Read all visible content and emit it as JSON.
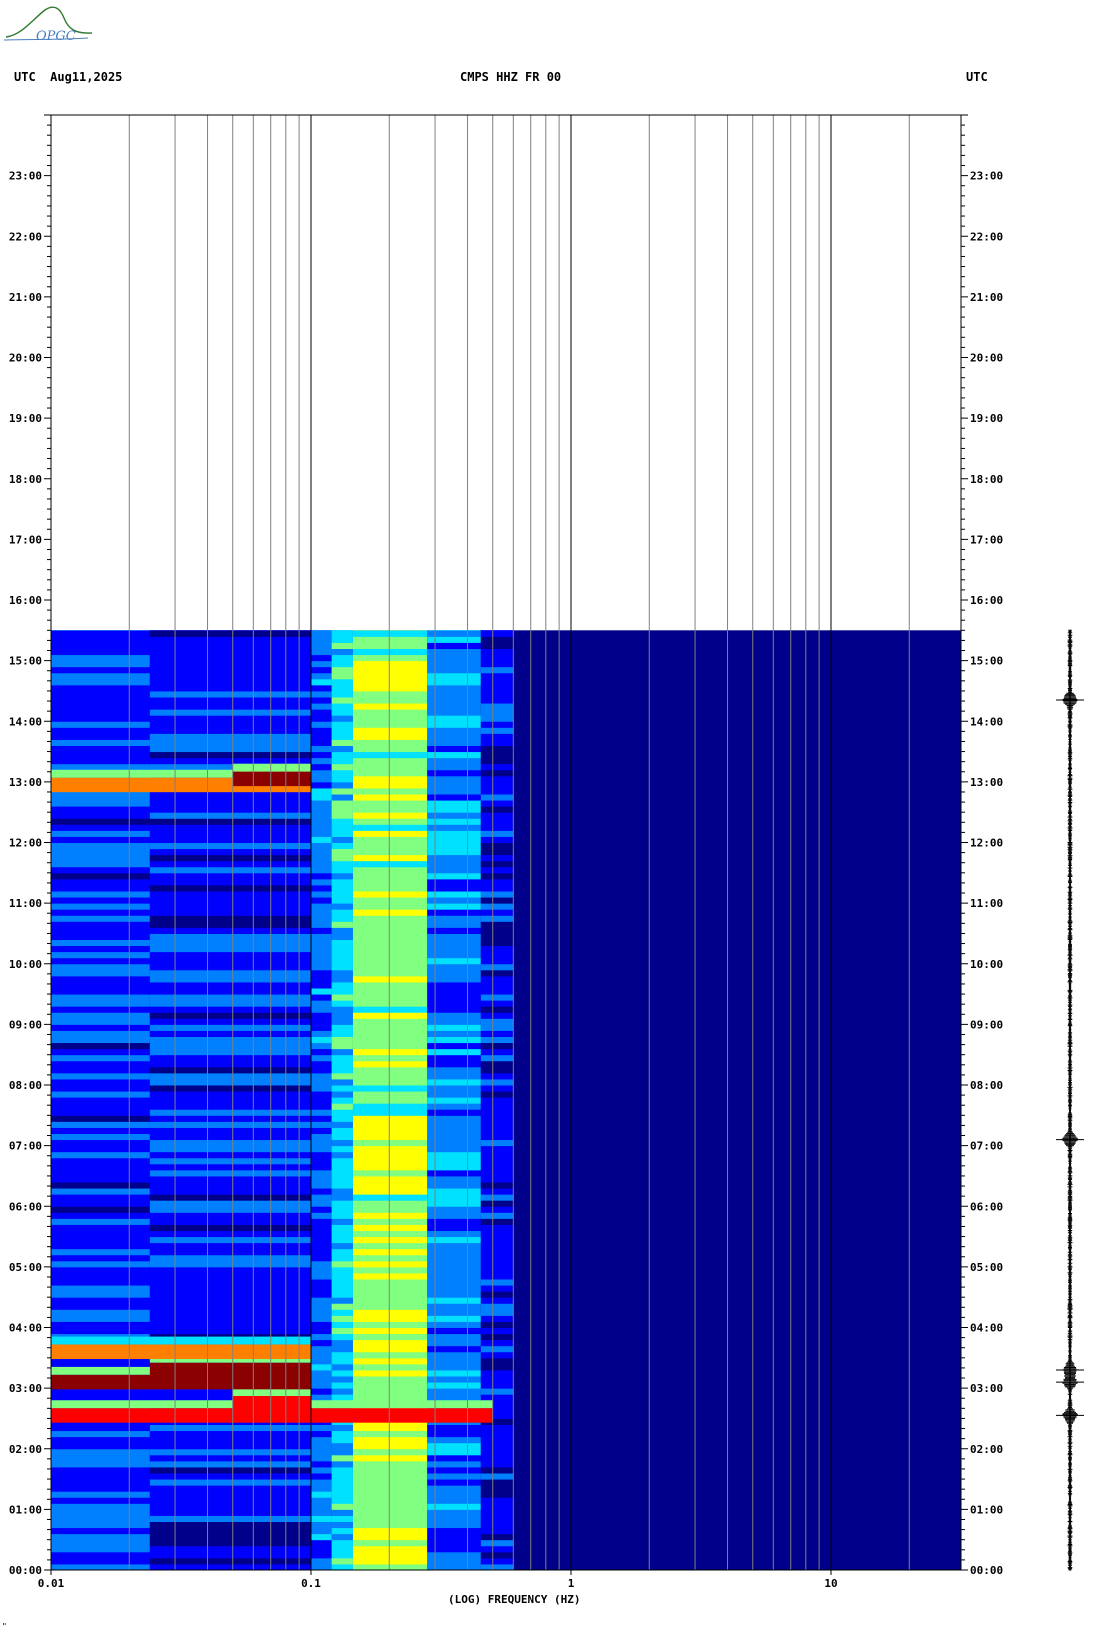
{
  "logo": {
    "text": "OPGC",
    "icon": "opgc-logo-icon",
    "color": "#2f7a2f"
  },
  "header": {
    "left_label": "UTC",
    "date": "Aug11,2025",
    "station": "CMPS HHZ FR 00",
    "right_label": "UTC"
  },
  "footer_mark": "\"",
  "chart_data": {
    "type": "heatmap",
    "title": "CMPS HHZ FR 00",
    "xlabel": "(LOG) FREQUENCY (HZ)",
    "ylabel": "",
    "x_scale": "log",
    "xlim": [
      0.01,
      30
    ],
    "x_tick_labels": [
      {
        "value": 0.01,
        "label": "0.01"
      },
      {
        "value": 0.1,
        "label": "0.1"
      },
      {
        "value": 1,
        "label": "1"
      },
      {
        "value": 10,
        "label": "10"
      }
    ],
    "x_minor_gridlines": [
      0.02,
      0.03,
      0.04,
      0.05,
      0.06,
      0.07,
      0.08,
      0.09,
      0.2,
      0.3,
      0.4,
      0.5,
      0.6,
      0.7,
      0.8,
      0.9,
      2,
      3,
      4,
      5,
      6,
      7,
      8,
      9,
      20
    ],
    "ylim_hours": [
      0,
      24
    ],
    "y_tick_labels": [
      "00:00",
      "01:00",
      "02:00",
      "03:00",
      "04:00",
      "05:00",
      "06:00",
      "07:00",
      "08:00",
      "09:00",
      "10:00",
      "11:00",
      "12:00",
      "13:00",
      "14:00",
      "15:00",
      "16:00",
      "17:00",
      "18:00",
      "19:00",
      "20:00",
      "21:00",
      "22:00",
      "23:00"
    ],
    "data_end_hour": 15.5,
    "colormap": [
      "#00008b",
      "#0000ff",
      "#0080ff",
      "#00e0ff",
      "#80ff80",
      "#ffff00",
      "#ff8000",
      "#ff0000",
      "#8b0000"
    ],
    "background_level": 0.12,
    "frequency_bands": [
      {
        "f_min": 0.01,
        "f_max": 0.024,
        "level": 0.22
      },
      {
        "f_min": 0.024,
        "f_max": 0.1,
        "level": 0.2
      },
      {
        "f_min": 0.1,
        "f_max": 0.12,
        "level": 0.28
      },
      {
        "f_min": 0.12,
        "f_max": 0.145,
        "level": 0.42
      },
      {
        "f_min": 0.145,
        "f_max": 0.28,
        "level": 0.6
      },
      {
        "f_min": 0.28,
        "f_max": 0.45,
        "level": 0.32
      },
      {
        "f_min": 0.45,
        "f_max": 0.6,
        "level": 0.18
      }
    ],
    "events": [
      {
        "hour": 2.55,
        "f_min": 0.01,
        "f_max": 0.5,
        "level": 0.9
      },
      {
        "hour": 2.75,
        "f_min": 0.05,
        "f_max": 0.1,
        "level": 0.95
      },
      {
        "hour": 3.1,
        "f_min": 0.01,
        "f_max": 0.1,
        "level": 1.0
      },
      {
        "hour": 3.3,
        "f_min": 0.024,
        "f_max": 0.1,
        "level": 1.0
      },
      {
        "hour": 3.6,
        "f_min": 0.01,
        "f_max": 0.1,
        "level": 0.75
      },
      {
        "hour": 12.95,
        "f_min": 0.01,
        "f_max": 0.1,
        "level": 0.85
      },
      {
        "hour": 13.05,
        "f_min": 0.05,
        "f_max": 0.1,
        "level": 1.0
      }
    ],
    "seismogram_markers_hours": [
      2.55,
      3.1,
      3.3,
      7.1,
      14.35
    ]
  }
}
